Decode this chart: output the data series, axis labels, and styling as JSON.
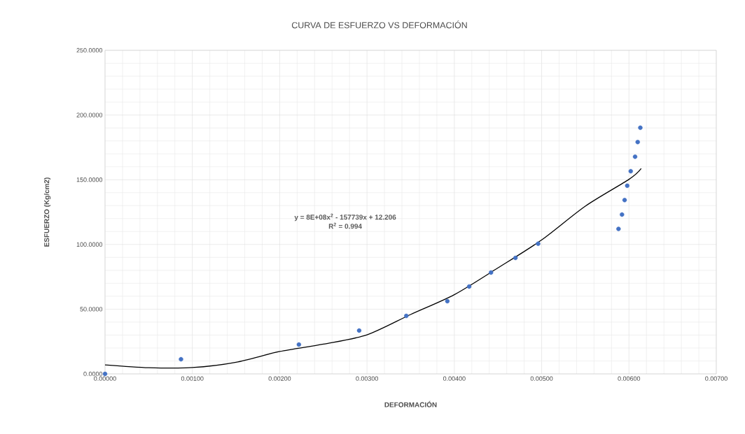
{
  "chart_data": {
    "type": "scatter",
    "title": "CURVA DE ESFUERZO VS DEFORMACIÓN",
    "xlabel": "DEFORMACIÓN",
    "ylabel": "ESFUERZO (Kg/cm2)",
    "annotations": [
      "y = 8E+08x$^{2}$ - 157739x + 12.206",
      "R$^{2}$ = 0.994"
    ],
    "series": [
      {
        "marker": "circle",
        "color": "#4472c4",
        "x": [
          0,
          0.00087,
          0.00222,
          0.00291,
          0.00345,
          0.00392,
          0.00417,
          0.00442,
          0.0047,
          0.00496,
          0.00588,
          0.00592,
          0.00595,
          0.00598,
          0.00602,
          0.00607,
          0.0061,
          0.00613
        ],
        "values": [
          0,
          11.3,
          22.7,
          33.5,
          44.8,
          56.2,
          67.5,
          78.3,
          89.6,
          100.6,
          112,
          123.1,
          134.3,
          145.4,
          156.6,
          167.8,
          179.1,
          190.2
        ]
      },
      {
        "type": "line",
        "color": "#000000",
        "x": [
          0,
          0.0005,
          0.001,
          0.0015,
          0.002,
          0.0025,
          0.003,
          0.0035,
          0.004,
          0.0045,
          0.005,
          0.0055,
          0.006,
          0.00614
        ],
        "values": [
          7,
          4.8,
          4.9,
          9,
          17.3,
          23,
          30.2,
          45.9,
          61.2,
          81.9,
          103.5,
          129.6,
          150.3,
          158.7
        ]
      }
    ],
    "line_style": "solid",
    "grid": true,
    "xlim": [
      0,
      0.007
    ],
    "ylim": [
      0,
      250
    ],
    "xticks": [
      {
        "value": 0,
        "label": "0.00000"
      },
      {
        "value": 0.001,
        "label": "0.00100"
      },
      {
        "value": 0.002,
        "label": "0.00200"
      },
      {
        "value": 0.003,
        "label": "0.00300"
      },
      {
        "value": 0.004,
        "label": "0.00400"
      },
      {
        "value": 0.005,
        "label": "0.00500"
      },
      {
        "value": 0.006,
        "label": "0.00600"
      },
      {
        "value": 0.007,
        "label": "0.00700"
      }
    ],
    "yticks": [
      {
        "value": 0,
        "label": "0.0000"
      },
      {
        "value": 50,
        "label": "50.0000"
      },
      {
        "value": 100,
        "label": "100.0000"
      },
      {
        "value": 150,
        "label": "150.0000"
      },
      {
        "value": 200,
        "label": "200.0000"
      },
      {
        "value": 250,
        "label": "250.0000"
      }
    ]
  }
}
